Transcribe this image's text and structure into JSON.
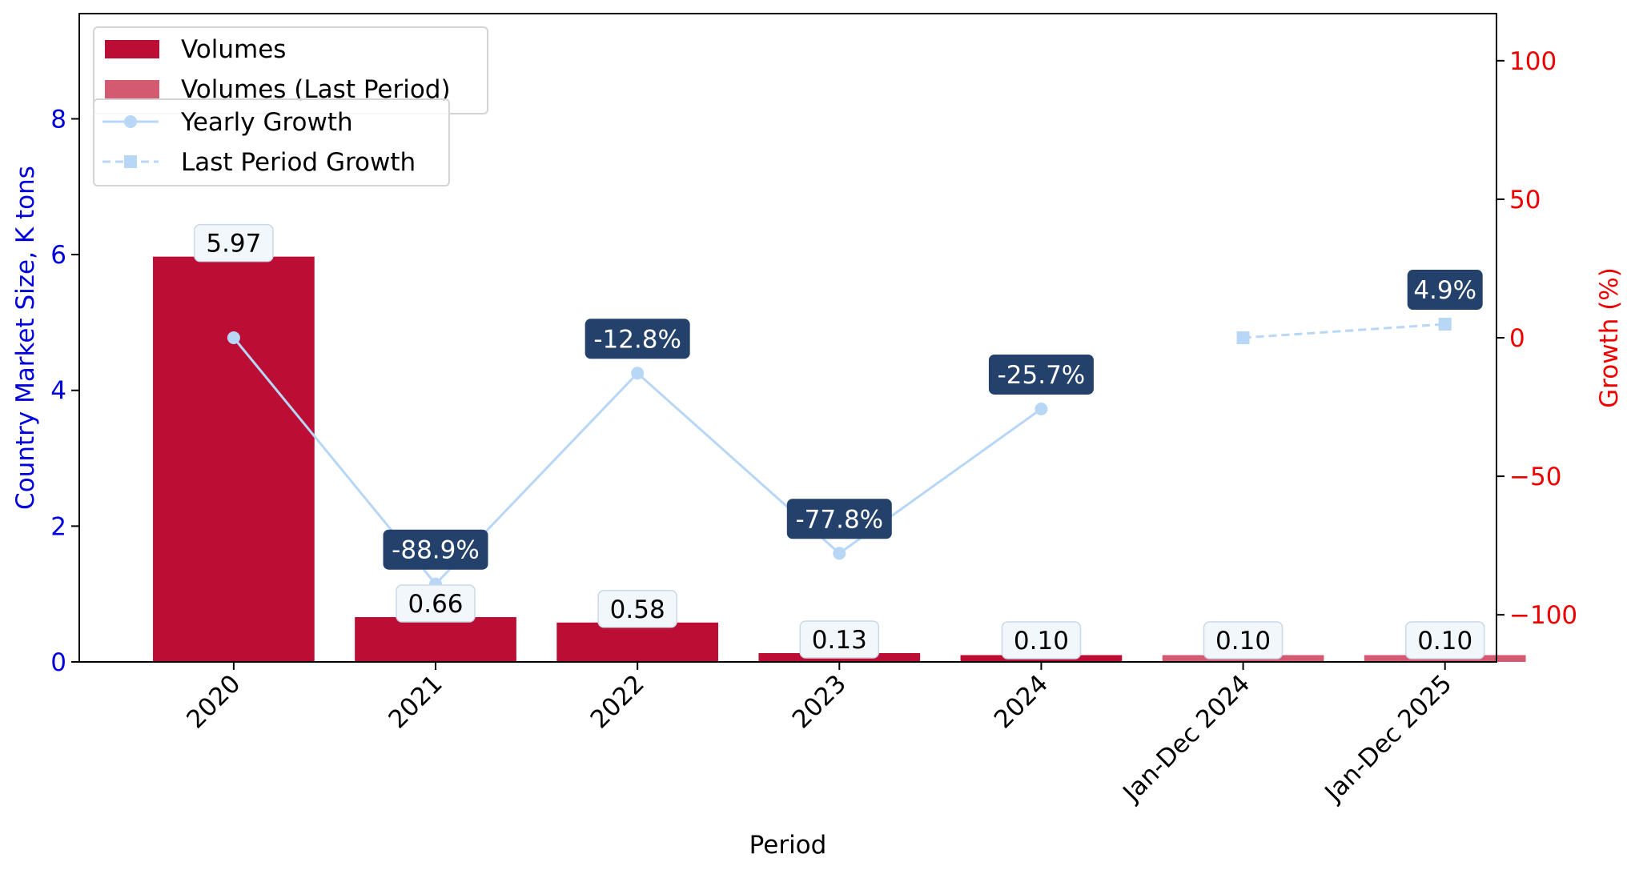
{
  "chart_data": {
    "type": "bar",
    "categories": [
      "2020",
      "2021",
      "2022",
      "2023",
      "2024",
      "Jan-Dec 2024",
      "Jan-Dec 2025"
    ],
    "bar_kinds": [
      "current",
      "current",
      "current",
      "current",
      "current",
      "last",
      "last"
    ],
    "series": [
      {
        "name": "Volumes",
        "axis": "left",
        "values": [
          5.97,
          0.66,
          0.58,
          0.13,
          0.1,
          null,
          null
        ],
        "labels": [
          "5.97",
          "0.66",
          "0.58",
          "0.13",
          "0.10",
          null,
          null
        ],
        "color": "#bc0d35"
      },
      {
        "name": "Volumes (Last Period)",
        "axis": "left",
        "values": [
          null,
          null,
          null,
          null,
          null,
          0.1,
          0.1
        ],
        "labels": [
          null,
          null,
          null,
          null,
          null,
          "0.10",
          "0.10"
        ],
        "color": "#d45a72"
      },
      {
        "name": "Yearly Growth",
        "axis": "right",
        "type": "line",
        "values": [
          0,
          -88.9,
          -12.8,
          -77.8,
          -25.7,
          null,
          null
        ],
        "labels": [
          null,
          "-88.9%",
          "-12.8%",
          "-77.8%",
          "-25.7%",
          null,
          null
        ],
        "color": "#b8d6f5",
        "marker": "circle",
        "linestyle": "solid"
      },
      {
        "name": "Last Period Growth",
        "axis": "right",
        "type": "line",
        "values": [
          null,
          null,
          null,
          null,
          null,
          0,
          4.9
        ],
        "labels": [
          null,
          null,
          null,
          null,
          null,
          null,
          "4.9%"
        ],
        "color": "#b8d6f5",
        "marker": "square",
        "linestyle": "dashed"
      }
    ],
    "xlabel": "Period",
    "ylabel": "Country Market Size, K tons",
    "y2label": "Growth (%)",
    "ylim": [
      0,
      9.55
    ],
    "y2lim": [
      -117,
      117
    ],
    "yticks": [
      0,
      2,
      4,
      6,
      8
    ],
    "y2ticks": [
      -100,
      -50,
      0,
      50,
      100
    ],
    "y2tick_labels": [
      "−100",
      "−50",
      "0",
      "50",
      "100"
    ],
    "grid": false,
    "legend_placement": "top-left",
    "colors": {
      "left_axis": "#0000dd",
      "right_axis": "#ee0000",
      "growth_label_bg": "#23416b",
      "value_label_bg": "#f2f7fc"
    }
  }
}
